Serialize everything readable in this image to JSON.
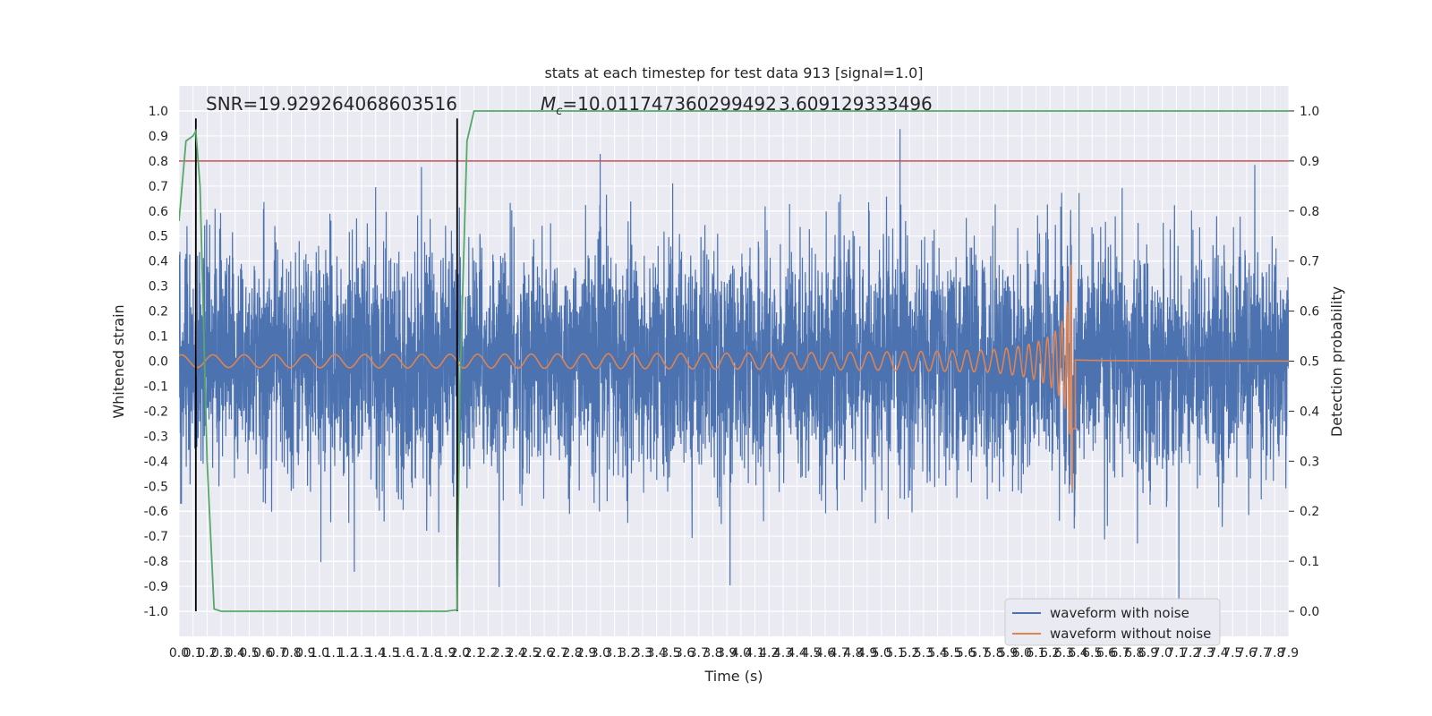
{
  "chart_data": {
    "type": "line",
    "title": "stats at each timestep for test data 913 [signal=1.0]",
    "xlabel": "Time (s)",
    "ylabel": "Whitened strain",
    "y2label": "Detection probability",
    "xlim": [
      0.0,
      7.9
    ],
    "ylim": [
      -1.1,
      1.1
    ],
    "y2lim": [
      -0.05,
      1.05
    ],
    "grid": true,
    "legend_position": "bottom-right",
    "x_ticks": [
      "0.0",
      "0.1",
      "0.2",
      "0.3",
      "0.4",
      "0.5",
      "0.6",
      "0.7",
      "0.8",
      "0.9",
      "1.0",
      "1.1",
      "1.2",
      "1.3",
      "1.4",
      "1.5",
      "1.6",
      "1.7",
      "1.8",
      "1.9",
      "2.0",
      "2.1",
      "2.2",
      "2.3",
      "2.4",
      "2.5",
      "2.6",
      "2.7",
      "2.8",
      "2.9",
      "3.0",
      "3.1",
      "3.2",
      "3.3",
      "3.4",
      "3.5",
      "3.6",
      "3.7",
      "3.8",
      "3.9",
      "4.0",
      "4.1",
      "4.2",
      "4.3",
      "4.4",
      "4.5",
      "4.6",
      "4.7",
      "4.8",
      "4.9",
      "5.0",
      "5.1",
      "5.2",
      "5.3",
      "5.4",
      "5.5",
      "5.6",
      "5.7",
      "5.8",
      "5.9",
      "6.0",
      "6.1",
      "6.2",
      "6.3",
      "6.4",
      "6.5",
      "6.6",
      "6.7",
      "6.8",
      "6.9",
      "7.0",
      "7.1",
      "7.2",
      "7.3",
      "7.4",
      "7.5",
      "7.6",
      "7.7",
      "7.8",
      "7.9"
    ],
    "y_ticks": [
      "1.0",
      "0.9",
      "0.8",
      "0.7",
      "0.6",
      "0.5",
      "0.4",
      "0.3",
      "0.2",
      "0.1",
      "0.0",
      "-0.1",
      "-0.2",
      "-0.3",
      "-0.4",
      "-0.5",
      "-0.6",
      "-0.7",
      "-0.8",
      "-0.9",
      "-1.0"
    ],
    "y2_ticks": [
      "1.0",
      "0.9",
      "0.8",
      "0.7",
      "0.6",
      "0.5",
      "0.4",
      "0.3",
      "0.2",
      "0.1",
      "0.0"
    ],
    "annotations": {
      "snr": "SNR=19.929264068603516",
      "mc": "=10.011747360299492",
      "mc_symbol": "M",
      "mc_sub": "c",
      "overlap": "3.609129333496"
    },
    "vertical_lines_x": [
      0.12,
      1.98
    ],
    "threshold_probability": 0.9,
    "series": [
      {
        "name": "waveform with noise",
        "color": "#4c72b0",
        "kind": "noise",
        "rms": 0.22
      },
      {
        "name": "waveform without noise",
        "color": "#dd8452",
        "kind": "chirp",
        "merger_x": 6.36
      },
      {
        "name": "",
        "color": "#55a868",
        "axis": "right",
        "x": [
          0.0,
          0.05,
          0.1,
          0.12,
          0.15,
          0.2,
          0.25,
          0.3,
          0.4,
          1.0,
          1.9,
          1.98,
          2.0,
          2.05,
          2.1,
          7.9
        ],
        "y": [
          0.78,
          0.94,
          0.95,
          0.96,
          0.85,
          0.3,
          0.005,
          0.0,
          0.0,
          0.0,
          0.0,
          0.003,
          0.45,
          0.94,
          1.0,
          1.0
        ]
      }
    ],
    "legend": [
      "waveform with noise",
      "waveform without noise"
    ]
  }
}
